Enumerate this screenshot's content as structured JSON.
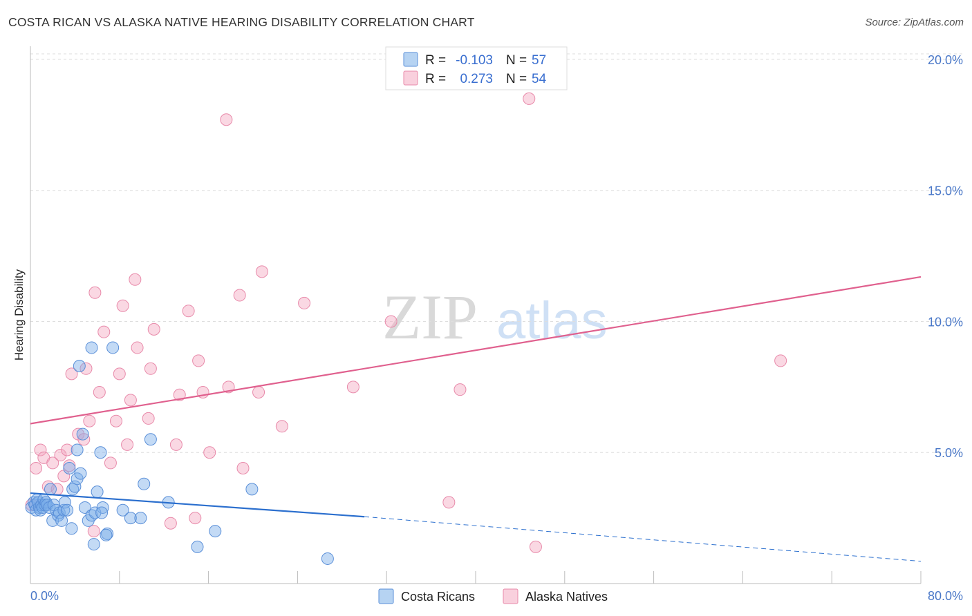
{
  "chart_data": {
    "type": "scatter",
    "title": "COSTA RICAN VS ALASKA NATIVE HEARING DISABILITY CORRELATION CHART",
    "source": "Source: ZipAtlas.com",
    "ylabel": "Hearing Disability",
    "xlabel": "",
    "xlim": [
      0,
      80
    ],
    "ylim": [
      0,
      20.5
    ],
    "x_tick_labels": [
      "0.0%",
      "80.0%"
    ],
    "y_ticks": [
      5,
      10,
      15,
      20
    ],
    "y_tick_labels": [
      "5.0%",
      "10.0%",
      "15.0%",
      "20.0%"
    ],
    "watermark": {
      "left": "ZIP",
      "right": "atlas"
    },
    "legend": {
      "rows": [
        {
          "r_label": "R =",
          "r_value": "-0.103",
          "n_label": "N =",
          "n_value": "57"
        },
        {
          "r_label": "R =",
          "r_value": "0.273",
          "n_label": "N =",
          "n_value": "54"
        }
      ]
    },
    "series": [
      {
        "name": "Costa Ricans",
        "color": "#7aaee8",
        "stroke": "#5a8fd8",
        "trend_color": "#2b6fce",
        "trend": {
          "x0": 0,
          "y0": 3.45,
          "x1": 30,
          "y1": 2.55,
          "dash_to_x": 80,
          "dash_to_y": 0.85
        },
        "points": [
          [
            0.1,
            2.9
          ],
          [
            0.3,
            3.1
          ],
          [
            0.4,
            3.0
          ],
          [
            0.5,
            2.8
          ],
          [
            0.6,
            3.2
          ],
          [
            0.7,
            3.1
          ],
          [
            0.8,
            2.9
          ],
          [
            0.9,
            2.8
          ],
          [
            1.0,
            3.0
          ],
          [
            1.1,
            2.9
          ],
          [
            1.2,
            3.2
          ],
          [
            1.3,
            3.0
          ],
          [
            1.4,
            3.1
          ],
          [
            1.5,
            3.0
          ],
          [
            1.7,
            2.9
          ],
          [
            1.8,
            3.6
          ],
          [
            2.0,
            2.4
          ],
          [
            2.1,
            3.0
          ],
          [
            2.3,
            2.8
          ],
          [
            2.5,
            2.6
          ],
          [
            2.6,
            2.7
          ],
          [
            2.8,
            2.4
          ],
          [
            3.0,
            2.8
          ],
          [
            3.1,
            3.1
          ],
          [
            3.3,
            2.8
          ],
          [
            3.5,
            4.4
          ],
          [
            3.7,
            2.1
          ],
          [
            3.8,
            3.6
          ],
          [
            4.0,
            3.7
          ],
          [
            4.2,
            4.0
          ],
          [
            4.5,
            4.2
          ],
          [
            4.2,
            5.1
          ],
          [
            4.4,
            8.3
          ],
          [
            4.7,
            5.7
          ],
          [
            4.9,
            2.9
          ],
          [
            5.2,
            2.4
          ],
          [
            5.5,
            2.6
          ],
          [
            5.5,
            9.0
          ],
          [
            5.8,
            2.7
          ],
          [
            5.7,
            1.5
          ],
          [
            6.0,
            3.5
          ],
          [
            6.3,
            5.0
          ],
          [
            6.5,
            2.9
          ],
          [
            6.4,
            2.7
          ],
          [
            6.9,
            1.9
          ],
          [
            6.8,
            1.85
          ],
          [
            7.4,
            9.0
          ],
          [
            8.3,
            2.8
          ],
          [
            9.0,
            2.5
          ],
          [
            9.9,
            2.5
          ],
          [
            10.2,
            3.8
          ],
          [
            10.8,
            5.5
          ],
          [
            12.4,
            3.1
          ],
          [
            15.0,
            1.4
          ],
          [
            16.6,
            2.0
          ],
          [
            19.9,
            3.6
          ],
          [
            26.7,
            0.95
          ]
        ]
      },
      {
        "name": "Alaska Natives",
        "color": "#f4a9c1",
        "stroke": "#e88aaa",
        "trend_color": "#e0608e",
        "trend": {
          "x0": 0,
          "y0": 6.1,
          "x1": 80,
          "y1": 11.7
        },
        "points": [
          [
            0.1,
            3.0
          ],
          [
            0.5,
            4.4
          ],
          [
            0.9,
            5.1
          ],
          [
            1.2,
            4.8
          ],
          [
            1.6,
            3.7
          ],
          [
            2.0,
            4.6
          ],
          [
            2.4,
            3.6
          ],
          [
            2.7,
            4.9
          ],
          [
            3.0,
            4.1
          ],
          [
            3.3,
            5.1
          ],
          [
            3.5,
            4.5
          ],
          [
            3.7,
            8.0
          ],
          [
            4.3,
            5.7
          ],
          [
            4.8,
            5.5
          ],
          [
            5.0,
            8.2
          ],
          [
            5.3,
            6.2
          ],
          [
            5.7,
            2.0
          ],
          [
            5.8,
            11.1
          ],
          [
            6.2,
            7.3
          ],
          [
            6.6,
            9.6
          ],
          [
            7.2,
            4.6
          ],
          [
            7.7,
            6.2
          ],
          [
            8.0,
            8.0
          ],
          [
            8.3,
            10.6
          ],
          [
            8.7,
            5.3
          ],
          [
            9.0,
            7.0
          ],
          [
            9.4,
            11.6
          ],
          [
            9.6,
            9.0
          ],
          [
            10.6,
            6.3
          ],
          [
            10.8,
            8.2
          ],
          [
            11.1,
            9.7
          ],
          [
            12.6,
            2.3
          ],
          [
            13.1,
            5.3
          ],
          [
            13.4,
            7.2
          ],
          [
            14.2,
            10.4
          ],
          [
            14.8,
            2.5
          ],
          [
            15.1,
            8.5
          ],
          [
            15.5,
            7.3
          ],
          [
            16.1,
            5.0
          ],
          [
            17.6,
            17.7
          ],
          [
            17.8,
            7.5
          ],
          [
            18.8,
            11.0
          ],
          [
            19.1,
            4.4
          ],
          [
            20.5,
            7.3
          ],
          [
            20.8,
            11.9
          ],
          [
            22.6,
            6.0
          ],
          [
            24.6,
            10.7
          ],
          [
            29.0,
            7.5
          ],
          [
            32.4,
            10.0
          ],
          [
            37.6,
            3.1
          ],
          [
            38.6,
            7.4
          ],
          [
            44.8,
            18.5
          ],
          [
            45.4,
            1.4
          ],
          [
            67.4,
            8.5
          ]
        ]
      }
    ]
  }
}
